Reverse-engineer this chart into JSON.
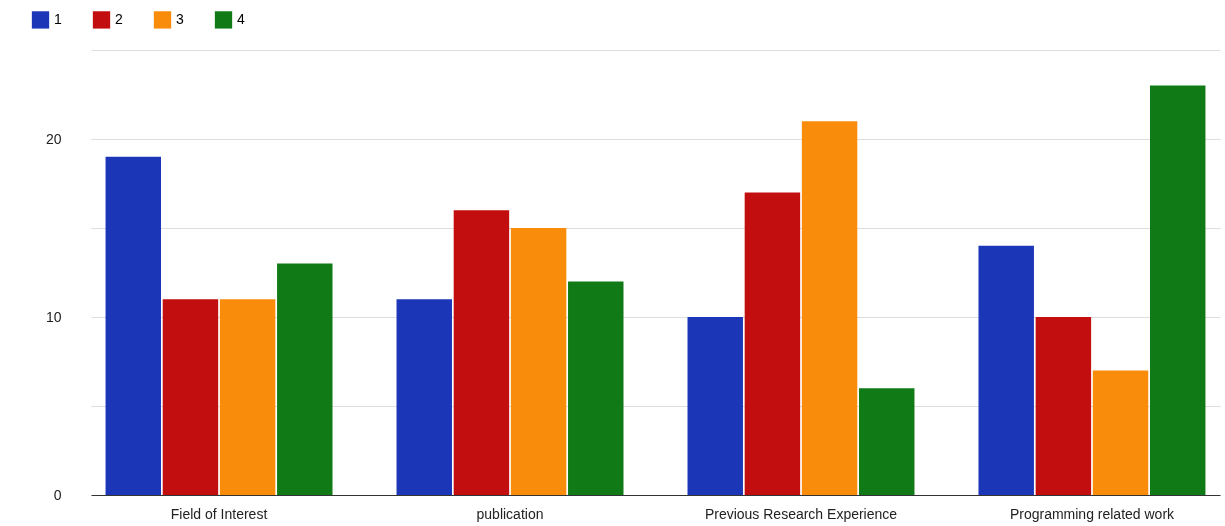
{
  "chart_data": {
    "type": "bar",
    "categories": [
      "Field of Interest",
      "publication",
      "Previous Research Experience",
      "Programming related work"
    ],
    "series": [
      {
        "name": "1",
        "color": "#1c36b8",
        "values": [
          19,
          11,
          10,
          14
        ]
      },
      {
        "name": "2",
        "color": "#c20e0e",
        "values": [
          11,
          16,
          17,
          10
        ]
      },
      {
        "name": "3",
        "color": "#f98c0a",
        "values": [
          11,
          15,
          21,
          7
        ]
      },
      {
        "name": "4",
        "color": "#0f7a16",
        "values": [
          13,
          12,
          6,
          23
        ]
      }
    ],
    "ylim": [
      0,
      25
    ],
    "yticks": [
      0,
      {
        "value": 5,
        "label": null
      },
      10,
      {
        "value": 15,
        "label": null
      },
      20,
      {
        "value": 25,
        "label": null
      }
    ],
    "grid": "y",
    "legend": "top left"
  }
}
